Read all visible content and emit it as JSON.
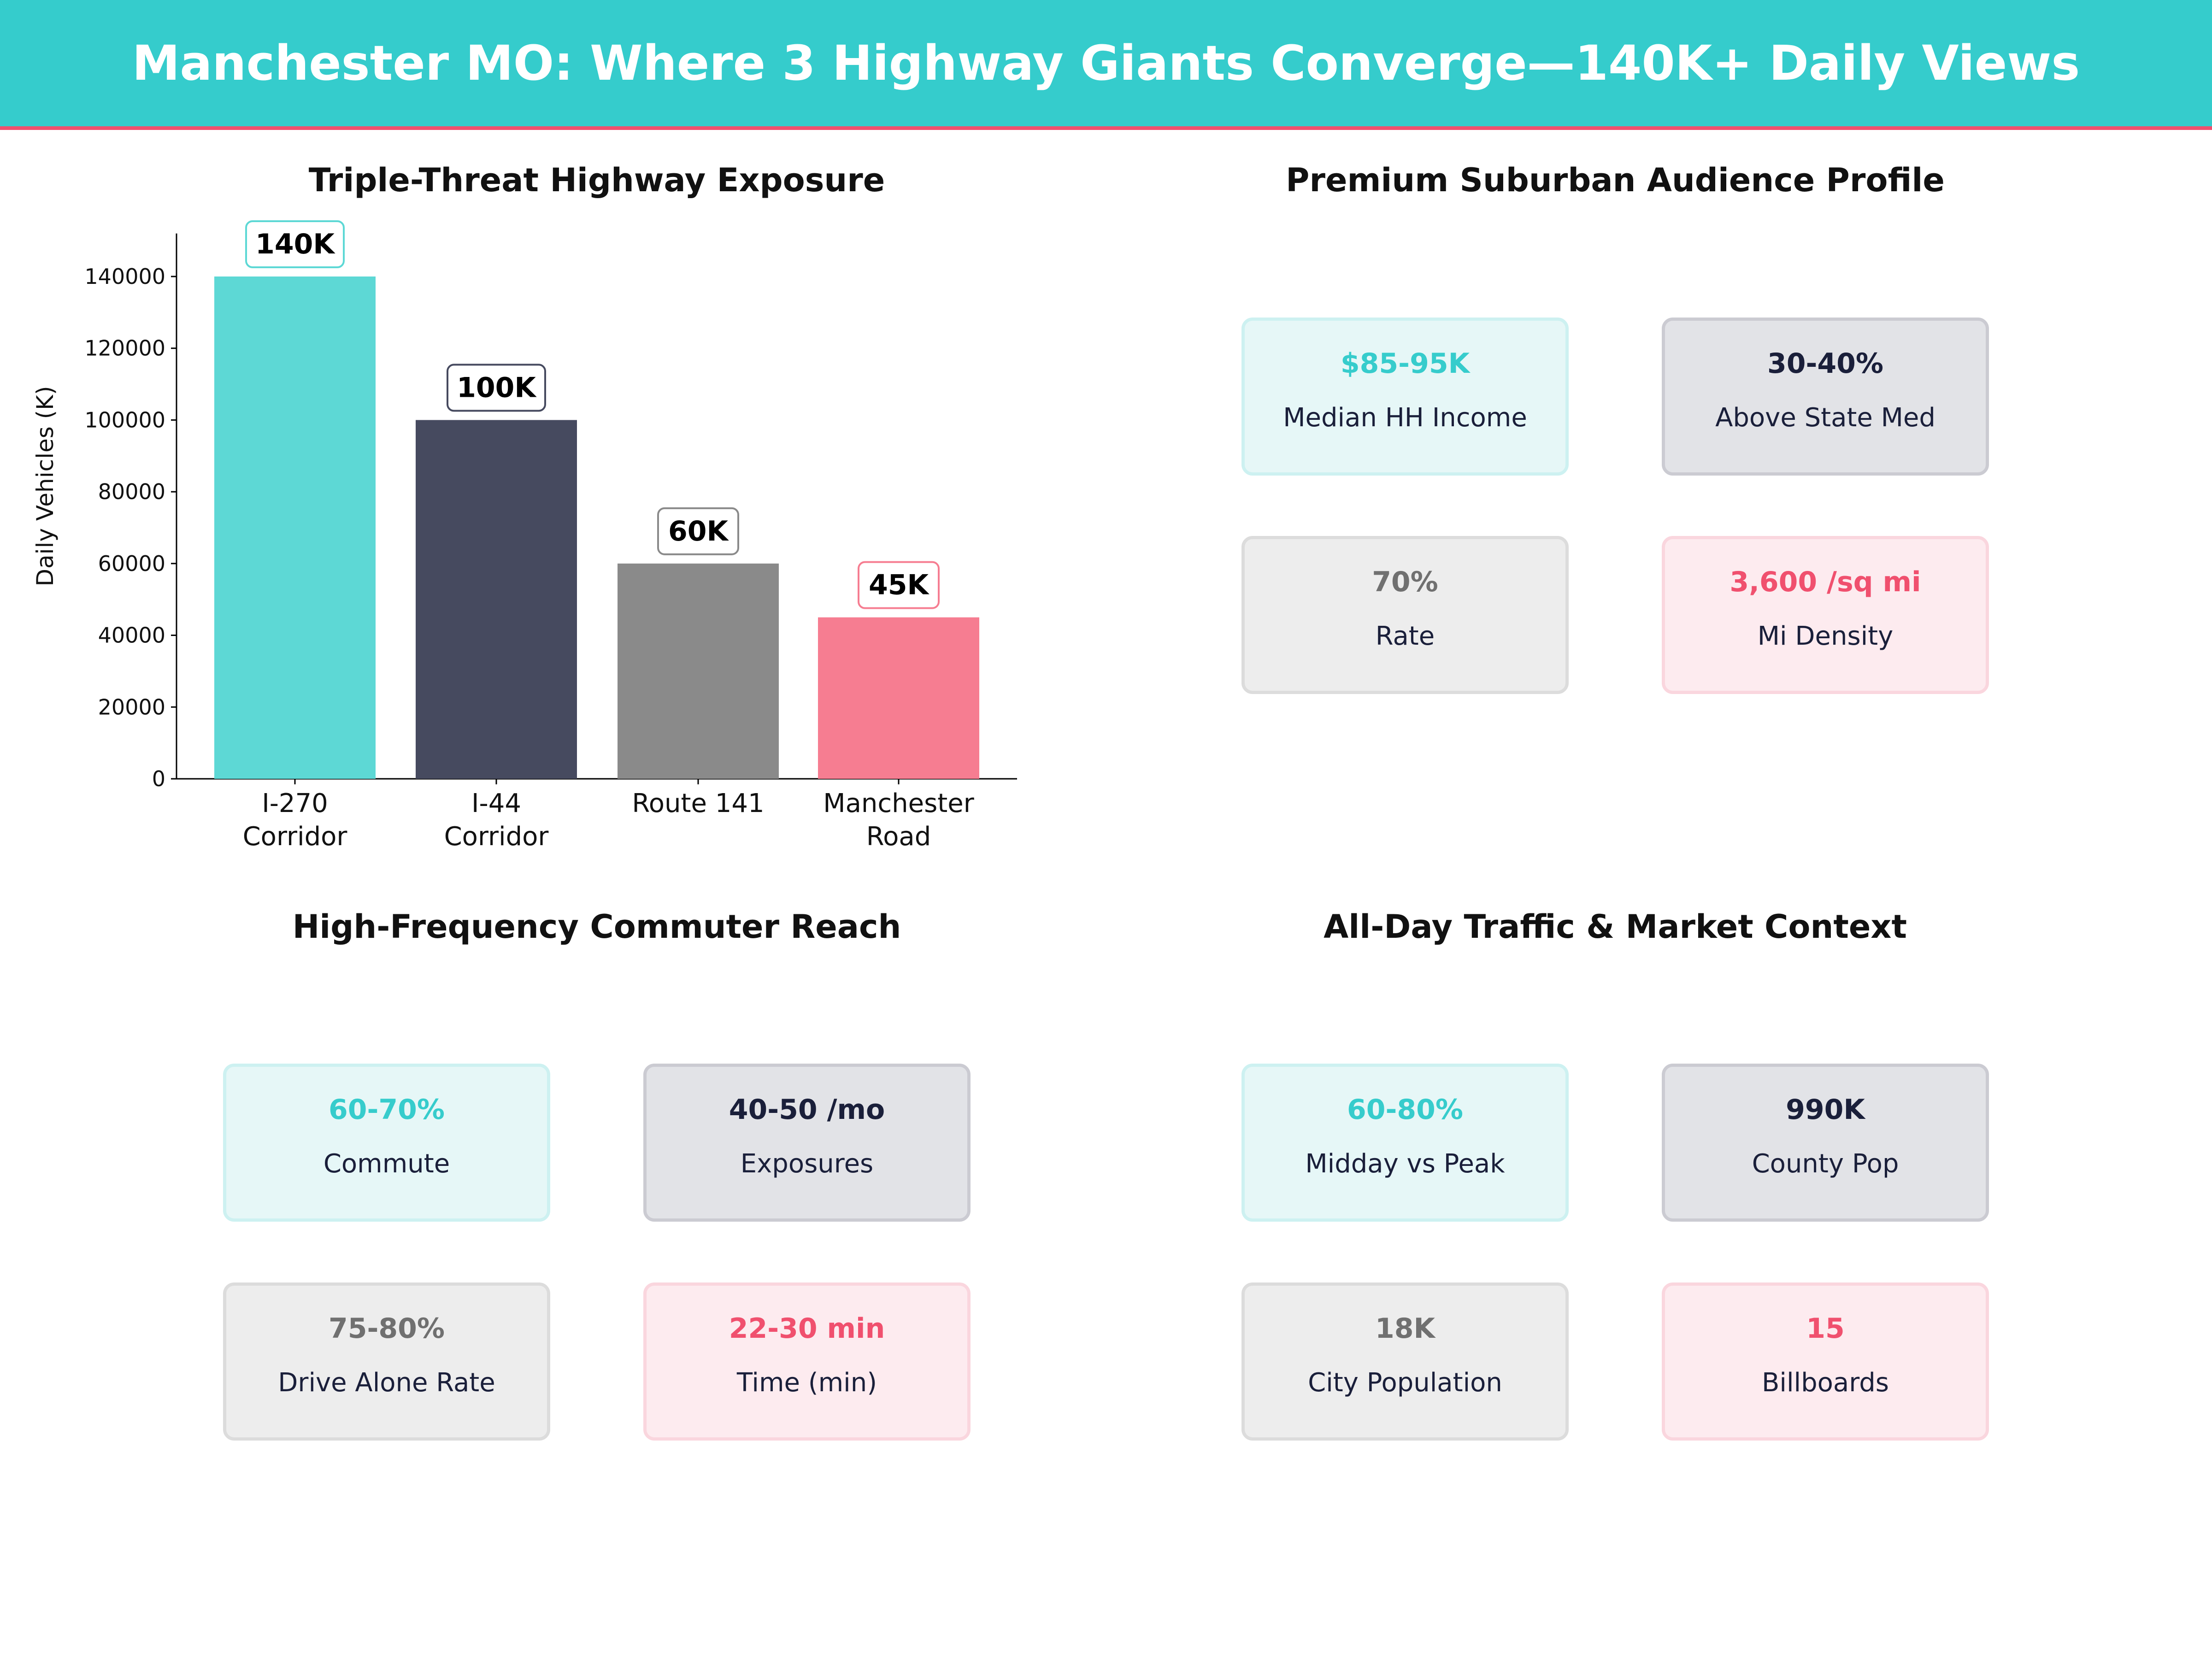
{
  "header": {
    "title": "Manchester MO: Where 3 Highway Giants Converge—140K+ Daily Views"
  },
  "colors": {
    "teal": "#36cccc",
    "navy": "#464a5f",
    "gray": "#8a8a8a",
    "pink": "#f67d91",
    "accent_line": "#f0506e"
  },
  "chart_data": {
    "type": "bar",
    "title": "Triple-Threat Highway Exposure",
    "categories": [
      [
        "I-270",
        "Corridor"
      ],
      [
        "I-44",
        "Corridor"
      ],
      [
        "Route 141"
      ],
      [
        "Manchester",
        "Road"
      ]
    ],
    "values": [
      140000,
      100000,
      60000,
      45000
    ],
    "data_labels": [
      "140K",
      "100K",
      "60K",
      "45K"
    ],
    "bar_colors": [
      "#5dd8d5",
      "#464a5f",
      "#8a8a8a",
      "#f67d91"
    ],
    "label_border_colors": [
      "#5dd8d5",
      "#464a5f",
      "#8a8a8a",
      "#f67d91"
    ],
    "xlabel": "",
    "ylabel": "Daily Vehicles (K)",
    "ylim": [
      0,
      152000
    ],
    "yticks": [
      0,
      20000,
      40000,
      60000,
      80000,
      100000,
      120000,
      140000
    ],
    "grid": false
  },
  "panels": [
    {
      "title": "Premium Suburban Audience Profile",
      "cards": [
        {
          "value": "$85-95K",
          "label": "Median HH Income"
        },
        {
          "value": "30-40%",
          "label": "Above State Med"
        },
        {
          "value": "70%",
          "label": "Rate"
        },
        {
          "value": "3,600 /sq mi",
          "label": "Mi Density"
        }
      ]
    },
    {
      "title": "High-Frequency Commuter Reach",
      "cards": [
        {
          "value": "60-70%",
          "label": "Commute"
        },
        {
          "value": "40-50 /mo",
          "label": "Exposures"
        },
        {
          "value": "75-80%",
          "label": "Drive Alone Rate"
        },
        {
          "value": "22-30 min",
          "label": "Time (min)"
        }
      ]
    },
    {
      "title": "All-Day Traffic & Market Context",
      "cards": [
        {
          "value": "60-80%",
          "label": "Midday vs Peak"
        },
        {
          "value": "990K",
          "label": "County Pop"
        },
        {
          "value": "18K",
          "label": "City Population"
        },
        {
          "value": "15",
          "label": "Billboards"
        }
      ]
    }
  ]
}
